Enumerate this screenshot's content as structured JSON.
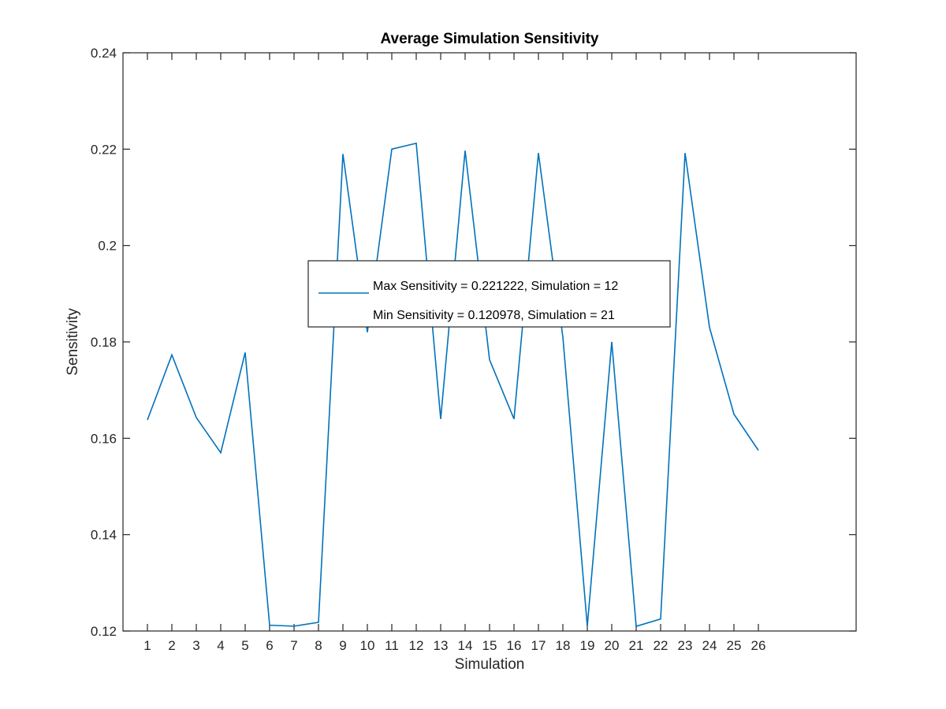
{
  "chart_data": {
    "type": "line",
    "title": "Average Simulation Sensitivity",
    "xlabel": "Simulation",
    "ylabel": "Sensitivity",
    "xlim": [
      0,
      30
    ],
    "ylim": [
      0.12,
      0.24
    ],
    "x_ticks": [
      1,
      2,
      3,
      4,
      5,
      6,
      7,
      8,
      9,
      10,
      11,
      12,
      13,
      14,
      15,
      16,
      17,
      18,
      19,
      20,
      21,
      22,
      23,
      24,
      25,
      26
    ],
    "y_ticks": [
      0.12,
      0.14,
      0.16,
      0.18,
      0.2,
      0.22,
      0.24
    ],
    "y_tick_labels": [
      "0.12",
      "0.14",
      "0.16",
      "0.18",
      "0.2",
      "0.22",
      "0.24"
    ],
    "grid": false,
    "legend_position": "center",
    "series": [
      {
        "x": [
          1,
          2,
          3,
          4,
          5,
          6,
          7,
          8,
          9,
          10,
          11,
          12,
          13,
          14,
          15,
          16,
          17,
          18,
          19,
          20,
          21,
          22,
          23,
          24,
          25,
          26
        ],
        "values": [
          0.1638,
          0.1773,
          0.1643,
          0.157,
          0.1778,
          0.1212,
          0.121,
          0.1218,
          0.219,
          0.182,
          0.22,
          0.221222,
          0.164,
          0.2197,
          0.1763,
          0.164,
          0.2192,
          0.181,
          0.121,
          0.18,
          0.120978,
          0.1225,
          0.2192,
          0.183,
          0.165,
          0.1575
        ],
        "color": "#0072BD"
      }
    ],
    "legend_entries": [
      "Max Sensitivity = 0.221222, Simulation = 12",
      "Min Sensitivity = 0.120978, Simulation = 21"
    ]
  }
}
